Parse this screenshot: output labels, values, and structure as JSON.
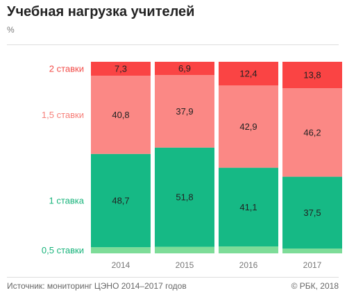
{
  "header": {
    "title": "Учебная нагрузка учителей",
    "unit": "%"
  },
  "footer": {
    "source": "Источник: мониторинг ЦЭНО 2014–2017 годов",
    "copyright": "© РБК, 2018"
  },
  "chart_data": {
    "type": "bar",
    "stacked": true,
    "title": "Учебная нагрузка учителей",
    "ylabel": "%",
    "categories": [
      "2014",
      "2015",
      "2016",
      "2017"
    ],
    "series": [
      {
        "name": "0,5 ставки",
        "values": [
          3.2,
          3.4,
          3.6,
          2.5
        ],
        "labels": [
          "",
          "",
          "",
          ""
        ],
        "color": "#7ddc98",
        "label_color": "#16b37a"
      },
      {
        "name": "1 ставка",
        "values": [
          48.7,
          51.8,
          41.1,
          37.5
        ],
        "labels": [
          "48,7",
          "51,8",
          "41,1",
          "37,5"
        ],
        "color": "#16b985",
        "label_color": "#16b37a"
      },
      {
        "name": "1,5 ставки",
        "values": [
          40.8,
          37.9,
          42.9,
          46.2
        ],
        "labels": [
          "40,8",
          "37,9",
          "42,9",
          "46,2"
        ],
        "color": "#fb8885",
        "label_color": "#f67e78"
      },
      {
        "name": "2 ставки",
        "values": [
          7.3,
          6.9,
          12.4,
          13.8
        ],
        "labels": [
          "7,3",
          "6,9",
          "12,4",
          "13,8"
        ],
        "color": "#fa4444",
        "label_color": "#f24b47"
      }
    ],
    "ylim": [
      0,
      100
    ],
    "grid": false,
    "legend": "left"
  }
}
